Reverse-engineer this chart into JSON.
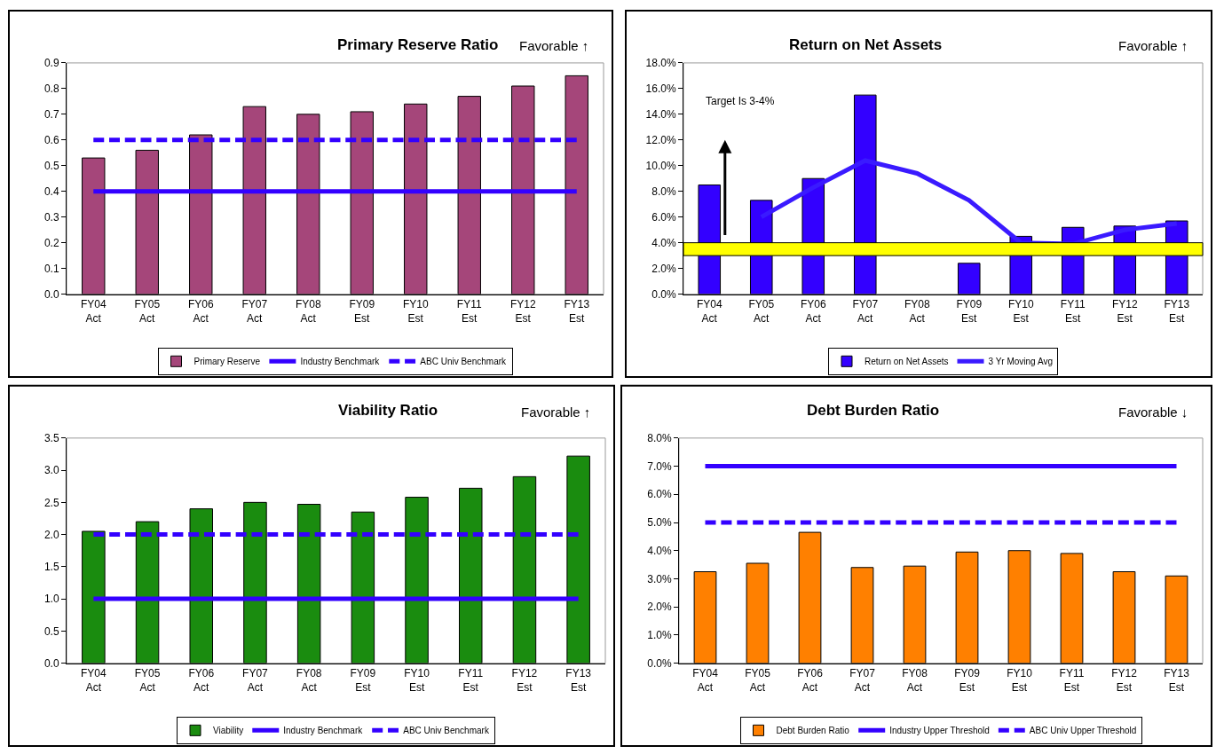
{
  "chart_data": [
    {
      "type": "bar",
      "title": "Primary Reserve Ratio",
      "annotations": [
        "Favorable ↑"
      ],
      "categories": [
        "FY04 Act",
        "FY05 Act",
        "FY06 Act",
        "FY07 Act",
        "FY08 Act",
        "FY09 Est",
        "FY10 Est",
        "FY11 Est",
        "FY12 Est",
        "FY13 Est"
      ],
      "series": [
        {
          "name": "Primary Reserve",
          "color": "#a5467a",
          "values": [
            0.53,
            0.56,
            0.62,
            0.73,
            0.7,
            0.71,
            0.74,
            0.77,
            0.81,
            0.85
          ]
        },
        {
          "name": "Industry Benchmark",
          "type": "line",
          "line_style": "solid",
          "color": "#3300ff",
          "values": [
            0.4,
            0.4,
            0.4,
            0.4,
            0.4,
            0.4,
            0.4,
            0.4,
            0.4,
            0.4
          ]
        },
        {
          "name": "ABC Univ Benchmark",
          "type": "line",
          "line_style": "dashed",
          "color": "#3300ff",
          "values": [
            0.6,
            0.6,
            0.6,
            0.6,
            0.6,
            0.6,
            0.6,
            0.6,
            0.6,
            0.6
          ]
        }
      ],
      "ylim": [
        0,
        0.9
      ],
      "yticks": [
        {
          "value": 0,
          "label": "0.0"
        },
        0.1,
        0.2,
        0.3,
        0.4,
        0.5,
        0.6,
        0.7,
        0.8,
        0.9
      ],
      "grid": false,
      "legend": "bottom"
    },
    {
      "type": "bar",
      "title": "Return on Net Assets",
      "annotations": [
        "Favorable ↑",
        "Target Is 3-4%"
      ],
      "categories": [
        "FY04 Act",
        "FY05 Act",
        "FY06 Act",
        "FY07 Act",
        "FY08 Act",
        "FY09 Est",
        "FY10 Est",
        "FY11 Est",
        "FY12 Est",
        "FY13 Est"
      ],
      "series": [
        {
          "name": "Return on Net Assets",
          "color": "#3300ff",
          "values": [
            8.5,
            7.3,
            9.0,
            15.5,
            null,
            2.4,
            4.5,
            5.2,
            5.3,
            5.7
          ]
        },
        {
          "name": "3 Yr Moving Avg",
          "type": "line",
          "line_style": "solid",
          "color": "#3a1aff",
          "values": [
            null,
            6.0,
            8.3,
            10.4,
            9.4,
            7.3,
            4.0,
            3.9,
            5.0,
            5.5
          ]
        }
      ],
      "bands": [
        {
          "axis": "y",
          "from": 3,
          "to": 4,
          "color": "#ffff00"
        }
      ],
      "ylim": [
        0,
        18
      ],
      "yticks": [
        {
          "value": 0,
          "label": "0.0%"
        },
        {
          "value": 2,
          "label": "2.0%"
        },
        {
          "value": 4,
          "label": "4.0%"
        },
        {
          "value": 6,
          "label": "6.0%"
        },
        {
          "value": 8,
          "label": "8.0%"
        },
        {
          "value": 10,
          "label": "10.0%"
        },
        {
          "value": 12,
          "label": "12.0%"
        },
        {
          "value": 14,
          "label": "14.0%"
        },
        {
          "value": 16,
          "label": "16.0%"
        },
        {
          "value": 18,
          "label": "18.0%"
        }
      ],
      "grid": false,
      "legend": "bottom"
    },
    {
      "type": "bar",
      "title": "Viability Ratio",
      "annotations": [
        "Favorable ↑"
      ],
      "categories": [
        "FY04 Act",
        "FY05 Act",
        "FY06 Act",
        "FY07 Act",
        "FY08 Act",
        "FY09 Est",
        "FY10 Est",
        "FY11 Est",
        "FY12 Est",
        "FY13 Est"
      ],
      "series": [
        {
          "name": "Viability",
          "color": "#1a8c0f",
          "values": [
            2.05,
            2.2,
            2.4,
            2.5,
            2.47,
            2.35,
            2.58,
            2.72,
            2.9,
            3.22
          ]
        },
        {
          "name": "Industry Benchmark",
          "type": "line",
          "line_style": "solid",
          "color": "#3300ff",
          "values": [
            1.0,
            1.0,
            1.0,
            1.0,
            1.0,
            1.0,
            1.0,
            1.0,
            1.0,
            1.0
          ]
        },
        {
          "name": "ABC Univ Benchmark",
          "type": "line",
          "line_style": "dashed",
          "color": "#3300ff",
          "values": [
            2.0,
            2.0,
            2.0,
            2.0,
            2.0,
            2.0,
            2.0,
            2.0,
            2.0,
            2.0
          ]
        }
      ],
      "ylim": [
        0,
        3.5
      ],
      "yticks": [
        {
          "value": 0,
          "label": "0.0"
        },
        0.5,
        {
          "value": 1,
          "label": "1.0"
        },
        1.5,
        {
          "value": 2,
          "label": "2.0"
        },
        2.5,
        {
          "value": 3,
          "label": "3.0"
        },
        3.5
      ],
      "grid": false,
      "legend": "bottom"
    },
    {
      "type": "bar",
      "title": "Debt Burden Ratio",
      "annotations": [
        "Favorable ↓"
      ],
      "categories": [
        "FY04 Act",
        "FY05 Act",
        "FY06 Act",
        "FY07 Act",
        "FY08 Act",
        "FY09 Est",
        "FY10 Est",
        "FY11 Est",
        "FY12 Est",
        "FY13 Est"
      ],
      "series": [
        {
          "name": "Debt Burden Ratio",
          "color": "#ff8000",
          "values": [
            3.25,
            3.55,
            4.65,
            3.4,
            3.45,
            3.95,
            4.0,
            3.9,
            3.25,
            3.1
          ]
        },
        {
          "name": "Industry Upper Threshold",
          "type": "line",
          "line_style": "solid",
          "color": "#3300ff",
          "values": [
            7.0,
            7.0,
            7.0,
            7.0,
            7.0,
            7.0,
            7.0,
            7.0,
            7.0,
            7.0
          ]
        },
        {
          "name": "ABC Univ Upper Threshold",
          "type": "line",
          "line_style": "dashed",
          "color": "#3300ff",
          "values": [
            5.0,
            5.0,
            5.0,
            5.0,
            5.0,
            5.0,
            5.0,
            5.0,
            5.0,
            5.0
          ]
        }
      ],
      "ylim": [
        0,
        8
      ],
      "yticks": [
        {
          "value": 0,
          "label": "0.0%"
        },
        {
          "value": 1,
          "label": "1.0%"
        },
        {
          "value": 2,
          "label": "2.0%"
        },
        {
          "value": 3,
          "label": "3.0%"
        },
        {
          "value": 4,
          "label": "4.0%"
        },
        {
          "value": 5,
          "label": "5.0%"
        },
        {
          "value": 6,
          "label": "6.0%"
        },
        {
          "value": 7,
          "label": "7.0%"
        },
        {
          "value": 8,
          "label": "8.0%"
        }
      ],
      "grid": false,
      "legend": "bottom"
    }
  ]
}
